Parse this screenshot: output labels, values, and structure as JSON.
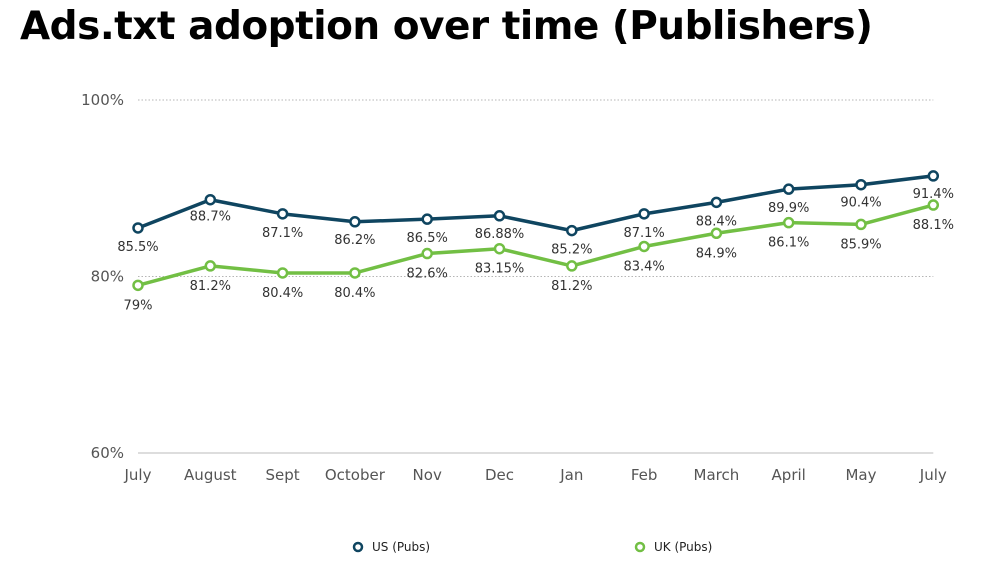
{
  "chart_data": {
    "type": "line",
    "title": "Ads.txt adoption over time (Publishers)",
    "xlabel": "",
    "ylabel": "",
    "categories": [
      "July",
      "August",
      "Sept",
      "October",
      "Nov",
      "Dec",
      "Jan",
      "Feb",
      "March",
      "April",
      "May",
      "July"
    ],
    "ylim": [
      60,
      100
    ],
    "yticks": [
      "60%",
      "80%",
      "100%"
    ],
    "grid": true,
    "legend_position": "bottom",
    "series": [
      {
        "name": "US (Pubs)",
        "color": "#0f4560",
        "values": [
          85.5,
          88.7,
          87.1,
          86.2,
          86.5,
          86.88,
          85.2,
          87.1,
          88.4,
          89.9,
          90.4,
          91.4
        ],
        "labels": [
          "85.5%",
          "88.7%",
          "87.1%",
          "86.2%",
          "86.5%",
          "86.88%",
          "85.2%",
          "87.1%",
          "88.4%",
          "89.9%",
          "90.4%",
          "91.4%"
        ]
      },
      {
        "name": "UK (Pubs)",
        "color": "#72bf44",
        "values": [
          79,
          81.2,
          80.4,
          80.4,
          82.6,
          83.15,
          81.2,
          83.4,
          84.9,
          86.1,
          85.9,
          88.1
        ],
        "labels": [
          "79%",
          "81.2%",
          "80.4%",
          "80.4%",
          "82.6%",
          "83.15%",
          "81.2%",
          "83.4%",
          "84.9%",
          "86.1%",
          "85.9%",
          "88.1%"
        ]
      }
    ]
  }
}
